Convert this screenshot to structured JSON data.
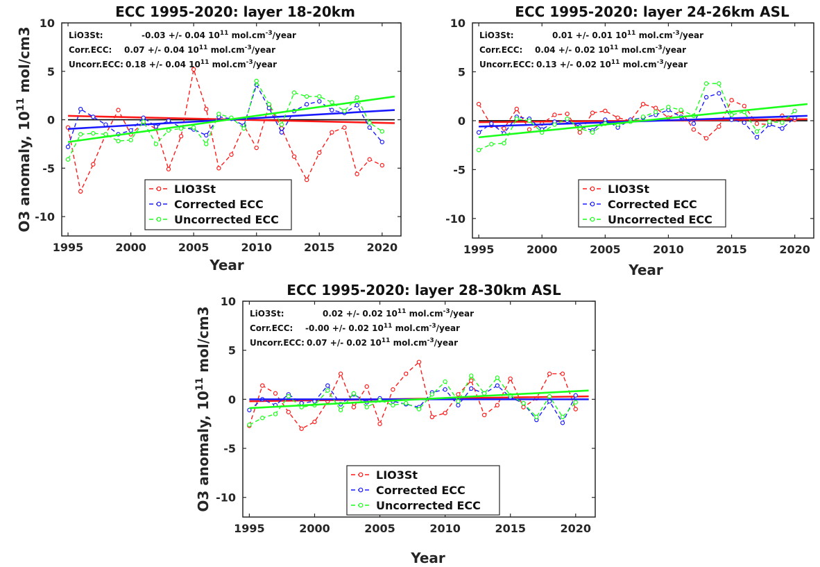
{
  "ylabel": "O3 anomaly, 10",
  "ylabel_exp": "11",
  "ylabel_unit": " mol/cm3",
  "legend": [
    "LIO3St",
    "Corrected ECC",
    "Uncorrected ECC"
  ],
  "colors": {
    "LIO3St": "#ff1a1a",
    "Corrected ECC": "#1a1aff",
    "Uncorrected ECC": "#1aff1a",
    "zero": "#000000"
  },
  "chart_data": [
    {
      "type": "line",
      "title": "ECC 1995-2020: layer 18-20km",
      "xlabel": "Year",
      "xlim": [
        1994.5,
        2021.5
      ],
      "ylim": [
        -12,
        10
      ],
      "xticks": [
        "1995",
        "2000",
        "2005",
        "2010",
        "2015",
        "2020"
      ],
      "yticks": [
        "10",
        "5",
        "0",
        "-5",
        "-10"
      ],
      "legend_position": "bottom-center",
      "annotations": [
        {
          "label": "LiO3St:",
          "value": "-0.03 +/- 0.04 10",
          "exp": "11",
          "unit": " mol.cm",
          "unit_exp": "-3",
          "tail": "/year"
        },
        {
          "label": "Corr.ECC:",
          "value": "0.07 +/- 0.04 10",
          "exp": "11",
          "unit": " mol.cm",
          "unit_exp": "-3",
          "tail": "/year"
        },
        {
          "label": "Uncorr.ECC:",
          "value": "0.18 +/- 0.04 10",
          "exp": "11",
          "unit": " mol.cm",
          "unit_exp": "-3",
          "tail": "/year"
        }
      ],
      "x": [
        1995,
        1996,
        1997,
        1998,
        1999,
        2000,
        2001,
        2002,
        2003,
        2004,
        2005,
        2006,
        2007,
        2008,
        2009,
        2010,
        2011,
        2012,
        2013,
        2014,
        2015,
        2016,
        2017,
        2018,
        2019,
        2020
      ],
      "series": [
        {
          "name": "LIO3St",
          "values": [
            -0.8,
            -7.4,
            -4.6,
            -1.5,
            1.0,
            -1.5,
            -0.3,
            -0.9,
            -5.1,
            -1.7,
            5.2,
            1.1,
            -5.0,
            -3.6,
            -0.6,
            -2.9,
            1.5,
            -0.9,
            -3.8,
            -6.2,
            -3.4,
            -1.3,
            -0.8,
            -5.6,
            -4.1,
            -4.7
          ],
          "trend": [
            0.4,
            -0.35
          ]
        },
        {
          "name": "Corrected ECC",
          "values": [
            -2.8,
            1.1,
            0.3,
            -0.5,
            -1.5,
            -1.1,
            0.2,
            -0.7,
            -0.1,
            -0.8,
            -1.0,
            -1.6,
            0.3,
            0.1,
            -0.6,
            3.6,
            1.2,
            -1.3,
            0.9,
            1.6,
            1.9,
            1.0,
            0.7,
            1.5,
            -0.8,
            -2.3
          ],
          "trend": [
            -0.95,
            1.0
          ]
        },
        {
          "name": "Uncorrected ECC",
          "values": [
            -4.1,
            -1.5,
            -1.4,
            -1.5,
            -2.2,
            -2.1,
            -0.2,
            -2.5,
            -1.1,
            -0.9,
            -0.8,
            -2.5,
            0.6,
            0.2,
            -0.9,
            4.0,
            1.6,
            -0.5,
            2.8,
            2.4,
            2.4,
            1.8,
            0.9,
            2.3,
            -0.3,
            -1.2
          ],
          "trend": [
            -2.3,
            2.4
          ]
        }
      ]
    },
    {
      "type": "line",
      "title": "ECC 1995-2020: layer 24-26km ASL",
      "xlabel": "Year",
      "xlim": [
        1994.5,
        2021.5
      ],
      "ylim": [
        -12,
        10
      ],
      "xticks": [
        "1995",
        "2000",
        "2005",
        "2010",
        "2015",
        "2020"
      ],
      "yticks": [
        "10",
        "5",
        "0",
        "-5",
        "-10"
      ],
      "legend_position": "bottom-center",
      "annotations": [
        {
          "label": "LiO3St:",
          "value": "0.01 +/- 0.01 10",
          "exp": "11",
          "unit": " mol.cm",
          "unit_exp": "-3",
          "tail": "/year"
        },
        {
          "label": "Corr.ECC:",
          "value": "0.04 +/- 0.02 10",
          "exp": "11",
          "unit": " mol.cm",
          "unit_exp": "-3",
          "tail": "/year"
        },
        {
          "label": "Uncorr.ECC:",
          "value": "0.13 +/- 0.02 10",
          "exp": "11",
          "unit": " mol.cm",
          "unit_exp": "-3",
          "tail": "/year"
        }
      ],
      "x": [
        1995,
        1996,
        1997,
        1998,
        1999,
        2000,
        2001,
        2002,
        2003,
        2004,
        2005,
        2006,
        2007,
        2008,
        2009,
        2010,
        2011,
        2012,
        2013,
        2014,
        2015,
        2016,
        2017,
        2018,
        2019,
        2020
      ],
      "series": [
        {
          "name": "LIO3St",
          "values": [
            1.7,
            -0.5,
            -0.8,
            1.2,
            -0.9,
            -0.3,
            0.6,
            0.7,
            -1.2,
            0.8,
            1.0,
            0.3,
            0.0,
            1.7,
            1.3,
            0.3,
            1.0,
            -0.9,
            -1.8,
            -0.6,
            2.1,
            1.5,
            -0.3,
            -0.4,
            0.5,
            0.1
          ],
          "trend": [
            -0.15,
            0.15
          ]
        },
        {
          "name": "Corrected ECC",
          "values": [
            -1.2,
            -0.3,
            -1.3,
            0.4,
            0.2,
            -0.9,
            -0.1,
            0.0,
            -0.6,
            -1.0,
            0.1,
            -0.7,
            0.1,
            0.3,
            0.6,
            1.1,
            0.4,
            -0.3,
            2.4,
            2.8,
            0.1,
            -0.2,
            -1.7,
            -0.4,
            -0.8,
            0.3
          ],
          "trend": [
            -0.6,
            0.5
          ]
        },
        {
          "name": "Uncorrected ECC",
          "values": [
            -3.0,
            -2.4,
            -2.3,
            0.2,
            0.0,
            -1.2,
            -0.4,
            0.2,
            -0.8,
            -1.2,
            -0.3,
            -0.4,
            -0.1,
            0.4,
            0.9,
            1.4,
            1.1,
            0.5,
            3.8,
            3.8,
            0.6,
            0.9,
            -1.1,
            -0.1,
            -0.2,
            1.0
          ],
          "trend": [
            -1.7,
            1.7
          ]
        }
      ]
    },
    {
      "type": "line",
      "title": "ECC 1995-2020: layer 28-30km ASL",
      "xlabel": "Year",
      "xlim": [
        1994.5,
        2021.5
      ],
      "ylim": [
        -12,
        10
      ],
      "xticks": [
        "1995",
        "2000",
        "2005",
        "2010",
        "2015",
        "2020"
      ],
      "yticks": [
        "10",
        "5",
        "0",
        "-5",
        "-10"
      ],
      "legend_position": "bottom-center",
      "annotations": [
        {
          "label": "LiO3St:",
          "value": "0.02 +/- 0.02 10",
          "exp": "11",
          "unit": " mol.cm",
          "unit_exp": "-3",
          "tail": "/year"
        },
        {
          "label": "Corr.ECC:",
          "value": "-0.00 +/- 0.02 10",
          "exp": "11",
          "unit": " mol.cm",
          "unit_exp": "-3",
          "tail": "/year"
        },
        {
          "label": "Uncorr.ECC:",
          "value": "0.07 +/- 0.02 10",
          "exp": "11",
          "unit": " mol.cm",
          "unit_exp": "-3",
          "tail": "/year"
        }
      ],
      "x": [
        1995,
        1996,
        1997,
        1998,
        1999,
        2000,
        2001,
        2002,
        2003,
        2004,
        2005,
        2006,
        2007,
        2008,
        2009,
        2010,
        2011,
        2012,
        2013,
        2014,
        2015,
        2016,
        2017,
        2018,
        2019,
        2020
      ],
      "series": [
        {
          "name": "LIO3St",
          "values": [
            -2.7,
            1.4,
            0.6,
            -1.3,
            -3.0,
            -2.3,
            -0.2,
            2.6,
            -0.8,
            1.3,
            -2.5,
            1.0,
            2.6,
            3.8,
            -1.8,
            -1.4,
            0.5,
            1.9,
            -1.6,
            -0.6,
            2.1,
            -0.8,
            0.1,
            2.6,
            2.6,
            -1.0
          ],
          "trend": [
            -0.2,
            0.3
          ]
        },
        {
          "name": "Corrected ECC",
          "values": [
            -1.1,
            0.0,
            -0.6,
            0.5,
            -0.4,
            -0.2,
            1.4,
            -0.5,
            0.5,
            -0.3,
            0.1,
            -0.2,
            -0.5,
            -0.8,
            0.7,
            1.0,
            -0.6,
            1.1,
            0.6,
            1.4,
            0.2,
            -0.4,
            -2.1,
            -0.2,
            -2.4,
            0.4
          ],
          "trend": [
            0.0,
            0.0
          ]
        },
        {
          "name": "Uncorrected ECC",
          "values": [
            -2.6,
            -1.9,
            -1.5,
            0.3,
            -0.8,
            -0.6,
            0.9,
            -1.1,
            0.6,
            -0.8,
            -0.1,
            -0.6,
            -0.4,
            -1.0,
            0.5,
            1.8,
            -0.2,
            2.4,
            0.6,
            2.2,
            0.4,
            -0.4,
            -1.8,
            0.3,
            -1.8,
            -0.3
          ],
          "trend": [
            -0.9,
            0.9
          ]
        }
      ]
    }
  ]
}
